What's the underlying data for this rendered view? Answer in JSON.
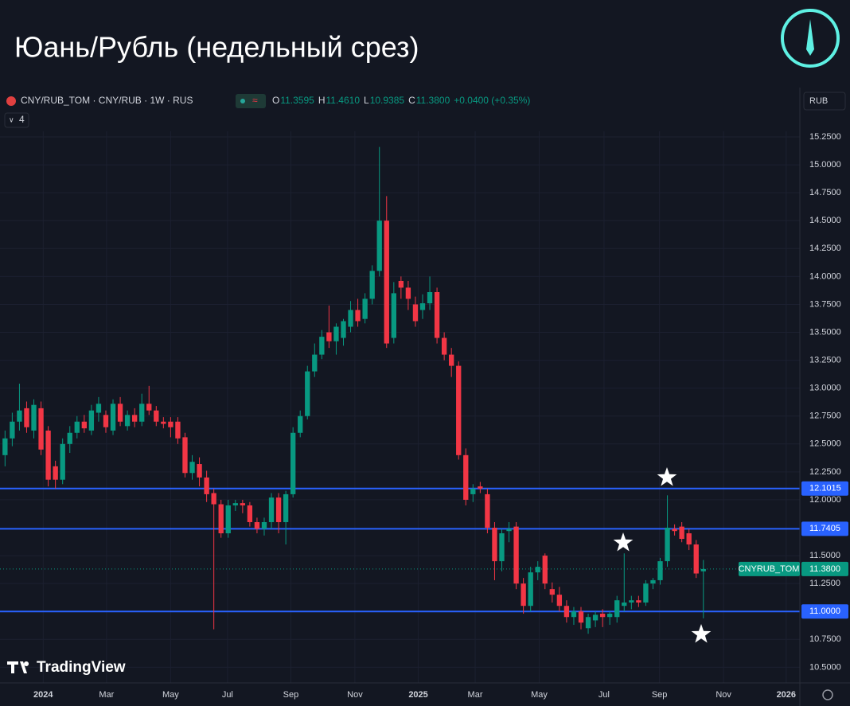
{
  "header": {
    "title": "Юань/Рубль (недельный срез)"
  },
  "chart_data": {
    "type": "candlestick",
    "symbol": "CNY/RUB_TOM · CNY/RUB · 1W · RUS",
    "legend": [
      {
        "key": "O",
        "value": "11.3595"
      },
      {
        "key": "H",
        "value": "11.4610"
      },
      {
        "key": "L",
        "value": "10.9385"
      },
      {
        "key": "C",
        "value": "11.3800"
      }
    ],
    "change": "+0.0400 (+0.35%)",
    "indicators": "4",
    "currency": "RUB",
    "watermark": "TradingView",
    "up_color": "#089981",
    "down_color": "#f23645",
    "ohlc": [
      [
        12.4,
        12.62,
        12.3,
        12.55
      ],
      [
        12.55,
        12.78,
        12.48,
        12.7
      ],
      [
        12.7,
        13.04,
        12.62,
        12.8
      ],
      [
        12.82,
        12.88,
        12.6,
        12.65
      ],
      [
        12.62,
        12.9,
        12.55,
        12.85
      ],
      [
        12.82,
        12.88,
        12.4,
        12.45
      ],
      [
        12.62,
        12.66,
        12.12,
        12.18
      ],
      [
        12.3,
        12.35,
        12.1,
        12.18
      ],
      [
        12.18,
        12.55,
        12.14,
        12.5
      ],
      [
        12.5,
        12.66,
        12.42,
        12.6
      ],
      [
        12.6,
        12.75,
        12.55,
        12.7
      ],
      [
        12.7,
        12.76,
        12.6,
        12.64
      ],
      [
        12.62,
        12.85,
        12.58,
        12.8
      ],
      [
        12.78,
        12.92,
        12.7,
        12.86
      ],
      [
        12.76,
        12.8,
        12.6,
        12.65
      ],
      [
        12.62,
        12.9,
        12.58,
        12.86
      ],
      [
        12.86,
        12.92,
        12.66,
        12.7
      ],
      [
        12.66,
        12.8,
        12.62,
        12.76
      ],
      [
        12.76,
        12.82,
        12.65,
        12.7
      ],
      [
        12.7,
        12.95,
        12.66,
        12.86
      ],
      [
        12.86,
        13.02,
        12.76,
        12.8
      ],
      [
        12.8,
        12.84,
        12.66,
        12.7
      ],
      [
        12.7,
        12.74,
        12.64,
        12.68
      ],
      [
        12.7,
        12.74,
        12.56,
        12.65
      ],
      [
        12.7,
        12.74,
        12.5,
        12.55
      ],
      [
        12.56,
        12.6,
        12.2,
        12.24
      ],
      [
        12.24,
        12.4,
        12.18,
        12.34
      ],
      [
        12.32,
        12.38,
        12.12,
        12.2
      ],
      [
        12.2,
        12.26,
        11.98,
        12.05
      ],
      [
        12.06,
        12.1,
        10.84,
        11.96
      ],
      [
        11.96,
        12.0,
        11.66,
        11.7
      ],
      [
        11.7,
        12.0,
        11.66,
        11.95
      ],
      [
        11.95,
        12.0,
        11.9,
        11.97
      ],
      [
        11.97,
        12.0,
        11.88,
        11.95
      ],
      [
        11.95,
        11.98,
        11.76,
        11.8
      ],
      [
        11.8,
        11.84,
        11.7,
        11.74
      ],
      [
        11.74,
        11.84,
        11.68,
        11.8
      ],
      [
        11.8,
        12.06,
        11.74,
        12.02
      ],
      [
        12.02,
        12.06,
        11.7,
        11.8
      ],
      [
        11.8,
        12.08,
        11.6,
        12.05
      ],
      [
        12.05,
        12.65,
        12.02,
        12.6
      ],
      [
        12.6,
        12.8,
        12.56,
        12.75
      ],
      [
        12.75,
        13.2,
        12.72,
        13.15
      ],
      [
        13.15,
        13.4,
        13.1,
        13.3
      ],
      [
        13.3,
        13.52,
        13.26,
        13.46
      ],
      [
        13.5,
        13.74,
        13.36,
        13.42
      ],
      [
        13.42,
        13.58,
        13.3,
        13.55
      ],
      [
        13.45,
        13.62,
        13.38,
        13.6
      ],
      [
        13.55,
        13.78,
        13.5,
        13.7
      ],
      [
        13.7,
        13.8,
        13.55,
        13.6
      ],
      [
        13.62,
        13.85,
        13.58,
        13.8
      ],
      [
        13.8,
        14.1,
        13.75,
        14.05
      ],
      [
        14.05,
        15.16,
        14.0,
        14.5
      ],
      [
        14.5,
        14.72,
        13.36,
        13.4
      ],
      [
        13.45,
        13.95,
        13.4,
        13.85
      ],
      [
        13.96,
        14.0,
        13.8,
        13.9
      ],
      [
        13.9,
        13.96,
        13.7,
        13.8
      ],
      [
        13.75,
        13.82,
        13.55,
        13.6
      ],
      [
        13.7,
        13.84,
        13.62,
        13.76
      ],
      [
        13.76,
        14.0,
        13.7,
        13.86
      ],
      [
        13.86,
        13.9,
        13.4,
        13.45
      ],
      [
        13.45,
        13.5,
        13.25,
        13.3
      ],
      [
        13.3,
        13.36,
        13.1,
        13.2
      ],
      [
        13.2,
        13.24,
        12.36,
        12.4
      ],
      [
        12.4,
        12.46,
        11.95,
        12.0
      ],
      [
        12.05,
        12.14,
        11.98,
        12.1
      ],
      [
        12.12,
        12.16,
        12.06,
        12.1
      ],
      [
        12.05,
        12.1,
        11.7,
        11.75
      ],
      [
        11.75,
        11.8,
        11.28,
        11.45
      ],
      [
        11.45,
        11.74,
        11.36,
        11.7
      ],
      [
        11.72,
        11.8,
        11.62,
        11.74
      ],
      [
        11.76,
        11.8,
        11.2,
        11.25
      ],
      [
        11.25,
        11.3,
        10.98,
        11.05
      ],
      [
        11.05,
        11.4,
        11.0,
        11.35
      ],
      [
        11.35,
        11.45,
        11.28,
        11.4
      ],
      [
        11.5,
        11.52,
        11.2,
        11.25
      ],
      [
        11.2,
        11.26,
        11.08,
        11.15
      ],
      [
        11.15,
        11.22,
        11.0,
        11.05
      ],
      [
        11.05,
        11.1,
        10.9,
        10.95
      ],
      [
        10.95,
        11.04,
        10.88,
        11.0
      ],
      [
        11.0,
        11.04,
        10.84,
        10.9
      ],
      [
        10.85,
        10.98,
        10.8,
        10.95
      ],
      [
        10.92,
        11.0,
        10.86,
        10.97
      ],
      [
        10.98,
        11.02,
        10.86,
        10.95
      ],
      [
        10.95,
        11.0,
        10.88,
        10.98
      ],
      [
        10.95,
        11.14,
        10.9,
        11.1
      ],
      [
        11.05,
        11.52,
        11.0,
        11.08
      ],
      [
        11.08,
        11.14,
        11.02,
        11.1
      ],
      [
        11.1,
        11.14,
        11.04,
        11.08
      ],
      [
        11.08,
        11.28,
        11.05,
        11.25
      ],
      [
        11.25,
        11.3,
        11.2,
        11.28
      ],
      [
        11.28,
        11.48,
        11.24,
        11.45
      ],
      [
        11.45,
        12.04,
        11.4,
        11.75
      ],
      [
        11.74,
        11.78,
        11.68,
        11.72
      ],
      [
        11.76,
        11.8,
        11.62,
        11.65
      ],
      [
        11.7,
        11.74,
        11.55,
        11.6
      ],
      [
        11.6,
        11.64,
        11.3,
        11.34
      ],
      [
        11.3595,
        11.461,
        10.9385,
        11.38
      ]
    ],
    "xlim": [
      -0.7,
      110.4
    ],
    "xticks": [
      {
        "value": 5.3,
        "label": "2024"
      },
      {
        "value": 14.1,
        "label": "Mar"
      },
      {
        "value": 23.0,
        "label": "May"
      },
      {
        "value": 30.9,
        "label": "Jul"
      },
      {
        "value": 39.7,
        "label": "Sep"
      },
      {
        "value": 48.6,
        "label": "Nov"
      },
      {
        "value": 57.4,
        "label": "2025"
      },
      {
        "value": 65.3,
        "label": "Mar"
      },
      {
        "value": 74.2,
        "label": "May"
      },
      {
        "value": 83.2,
        "label": "Jul"
      },
      {
        "value": 90.9,
        "label": "Sep"
      },
      {
        "value": 99.8,
        "label": "Nov"
      },
      {
        "value": 108.5,
        "label": "2026"
      }
    ],
    "ylim": [
      10.36,
      15.3
    ],
    "yticks": [
      {
        "value": 10.5,
        "label": "10.5000"
      },
      {
        "value": 10.75,
        "label": "10.7500"
      },
      {
        "value": 11.25,
        "label": "11.2500"
      },
      {
        "value": 11.5,
        "label": "11.5000"
      },
      {
        "value": 12,
        "label": "12.0000"
      },
      {
        "value": 12.25,
        "label": "12.2500"
      },
      {
        "value": 12.5,
        "label": "12.5000"
      },
      {
        "value": 12.75,
        "label": "12.7500"
      },
      {
        "value": 13,
        "label": "13.0000"
      },
      {
        "value": 13.25,
        "label": "13.2500"
      },
      {
        "value": 13.5,
        "label": "13.5000"
      },
      {
        "value": 13.75,
        "label": "13.7500"
      },
      {
        "value": 14,
        "label": "14.0000"
      },
      {
        "value": 14.25,
        "label": "14.2500"
      },
      {
        "value": 14.5,
        "label": "14.5000"
      },
      {
        "value": 14.75,
        "label": "14.7500"
      },
      {
        "value": 15,
        "label": "15.0000"
      },
      {
        "value": 15.25,
        "label": "15.2500"
      }
    ],
    "grid": true,
    "levels": [
      12.1015,
      11.7405,
      {
        "value": 11,
        "label": "11.0000"
      }
    ],
    "level_color": "#2962ff",
    "last_price": {
      "name": "CNYRUB_TOM",
      "value": 11.38,
      "label": "11.3800"
    }
  }
}
